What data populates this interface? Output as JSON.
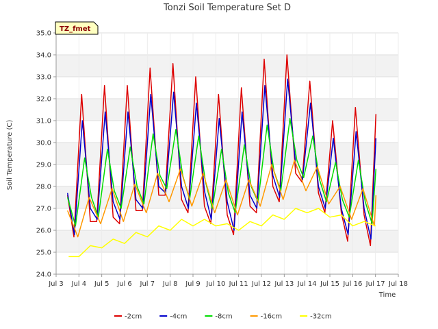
{
  "chart_data": {
    "type": "line",
    "title": "Tonzi Soil Temperature Set D",
    "xlabel": "Time",
    "ylabel": "Soil Temperature (C)",
    "badge": "TZ_fmet",
    "xlim": [
      3,
      18
    ],
    "ylim": [
      24.0,
      35.0
    ],
    "x_ticks": [
      3,
      4,
      5,
      6,
      7,
      8,
      9,
      10,
      11,
      12,
      13,
      14,
      15,
      16,
      17,
      18
    ],
    "x_tick_labels": [
      "Jul 3",
      "Jul 4",
      "Jul 5",
      "Jul 6",
      "Jul 7",
      "Jul 8",
      "Jul 9",
      "Jul 10",
      "Jul 11",
      "Jul 12",
      "Jul 13",
      "Jul 14",
      "Jul 15",
      "Jul 16",
      "Jul 17",
      "Jul 18"
    ],
    "y_ticks": [
      24.0,
      25.0,
      26.0,
      27.0,
      28.0,
      29.0,
      30.0,
      31.0,
      32.0,
      33.0,
      34.0,
      35.0
    ],
    "y_tick_labels": [
      "24.0",
      "25.0",
      "26.0",
      "27.0",
      "28.0",
      "29.0",
      "30.0",
      "31.0",
      "32.0",
      "33.0",
      "34.0",
      "35.0"
    ],
    "grid": true,
    "legend_position": "bottom",
    "series": [
      {
        "name": "-2cm",
        "color": "#dd0000",
        "x": [
          3.5,
          3.78,
          4.12,
          4.5,
          4.78,
          5.12,
          5.5,
          5.78,
          6.12,
          6.5,
          6.78,
          7.12,
          7.5,
          7.78,
          8.12,
          8.5,
          8.78,
          9.12,
          9.5,
          9.78,
          10.12,
          10.5,
          10.78,
          11.12,
          11.5,
          11.78,
          12.12,
          12.5,
          12.78,
          13.12,
          13.5,
          13.78,
          14.12,
          14.5,
          14.78,
          15.12,
          15.5,
          15.78,
          16.12,
          16.5,
          16.78,
          17.02
        ],
        "y": [
          27.6,
          25.7,
          32.2,
          26.4,
          26.4,
          32.6,
          26.6,
          26.3,
          32.6,
          26.9,
          26.9,
          33.4,
          27.6,
          27.6,
          33.6,
          27.4,
          26.8,
          33.0,
          27.1,
          26.3,
          32.2,
          26.7,
          25.8,
          32.5,
          27.1,
          26.8,
          33.8,
          28.0,
          27.3,
          34.0,
          28.6,
          28.2,
          32.8,
          27.7,
          26.8,
          31.0,
          26.8,
          25.5,
          31.6,
          26.7,
          25.3,
          31.3
        ]
      },
      {
        "name": "-4cm",
        "color": "#0000cc",
        "x": [
          3.5,
          3.8,
          4.15,
          4.5,
          4.8,
          5.15,
          5.5,
          5.8,
          6.15,
          6.5,
          6.8,
          7.15,
          7.5,
          7.8,
          8.15,
          8.5,
          8.8,
          9.15,
          9.5,
          9.8,
          10.15,
          10.5,
          10.8,
          11.15,
          11.5,
          11.8,
          12.15,
          12.5,
          12.8,
          13.15,
          13.5,
          13.8,
          14.15,
          14.5,
          14.8,
          15.15,
          15.5,
          15.8,
          16.15,
          16.5,
          16.8,
          17.02
        ],
        "y": [
          27.7,
          25.8,
          31.0,
          27.0,
          26.5,
          31.4,
          27.3,
          26.5,
          31.4,
          27.4,
          27.0,
          32.2,
          28.0,
          27.7,
          32.3,
          28.0,
          27.0,
          31.8,
          27.8,
          26.5,
          31.1,
          27.3,
          26.0,
          31.4,
          27.6,
          27.0,
          32.6,
          28.5,
          27.5,
          32.9,
          29.0,
          28.3,
          31.8,
          28.0,
          27.0,
          30.2,
          27.0,
          25.8,
          30.5,
          27.0,
          25.6,
          30.2
        ]
      },
      {
        "name": "-8cm",
        "color": "#00dd00",
        "x": [
          3.5,
          3.85,
          4.25,
          4.55,
          4.85,
          5.25,
          5.55,
          5.85,
          6.25,
          6.55,
          6.85,
          7.25,
          7.55,
          7.85,
          8.25,
          8.55,
          8.85,
          9.25,
          9.55,
          9.85,
          10.25,
          10.55,
          10.85,
          11.25,
          11.55,
          11.85,
          12.25,
          12.55,
          12.85,
          13.25,
          13.55,
          13.85,
          14.25,
          14.55,
          14.85,
          15.25,
          15.55,
          15.85,
          16.25,
          16.55,
          16.85,
          17.02
        ],
        "y": [
          27.5,
          26.2,
          29.3,
          27.5,
          26.6,
          29.7,
          27.8,
          27.0,
          29.8,
          28.0,
          27.2,
          30.4,
          28.5,
          27.9,
          30.6,
          28.5,
          27.4,
          30.3,
          28.2,
          27.0,
          29.7,
          27.7,
          26.8,
          29.9,
          28.0,
          27.3,
          30.8,
          28.7,
          27.8,
          31.1,
          29.2,
          28.4,
          30.3,
          28.3,
          27.3,
          29.1,
          27.4,
          26.6,
          29.2,
          27.3,
          26.3,
          28.8
        ]
      },
      {
        "name": "-16cm",
        "color": "#ff9900",
        "x": [
          3.5,
          3.95,
          4.45,
          4.95,
          5.45,
          5.95,
          6.45,
          6.95,
          7.45,
          7.95,
          8.45,
          8.95,
          9.45,
          9.95,
          10.45,
          10.95,
          11.45,
          11.95,
          12.45,
          12.95,
          13.45,
          13.95,
          14.45,
          14.95,
          15.45,
          15.95,
          16.45,
          16.95,
          17.02
        ],
        "y": [
          26.9,
          25.7,
          27.5,
          26.3,
          27.9,
          26.4,
          28.1,
          26.8,
          28.6,
          27.3,
          28.8,
          27.1,
          28.6,
          26.8,
          28.3,
          26.7,
          28.3,
          27.1,
          29.0,
          27.4,
          29.2,
          27.8,
          28.9,
          27.2,
          28.0,
          26.5,
          27.9,
          26.2,
          27.6
        ]
      },
      {
        "name": "-32cm",
        "color": "#ffff00",
        "x": [
          3.55,
          4.0,
          4.5,
          5.0,
          5.5,
          6.0,
          6.5,
          7.0,
          7.5,
          8.0,
          8.5,
          9.0,
          9.5,
          10.0,
          10.5,
          11.0,
          11.5,
          12.0,
          12.5,
          13.0,
          13.5,
          14.0,
          14.5,
          15.0,
          15.5,
          16.0,
          16.5,
          17.0
        ],
        "y": [
          24.8,
          24.8,
          25.3,
          25.2,
          25.6,
          25.4,
          25.9,
          25.7,
          26.2,
          26.0,
          26.5,
          26.2,
          26.5,
          26.2,
          26.3,
          26.0,
          26.4,
          26.2,
          26.7,
          26.5,
          27.0,
          26.8,
          27.0,
          26.6,
          26.7,
          26.2,
          26.4,
          26.2
        ]
      }
    ]
  }
}
